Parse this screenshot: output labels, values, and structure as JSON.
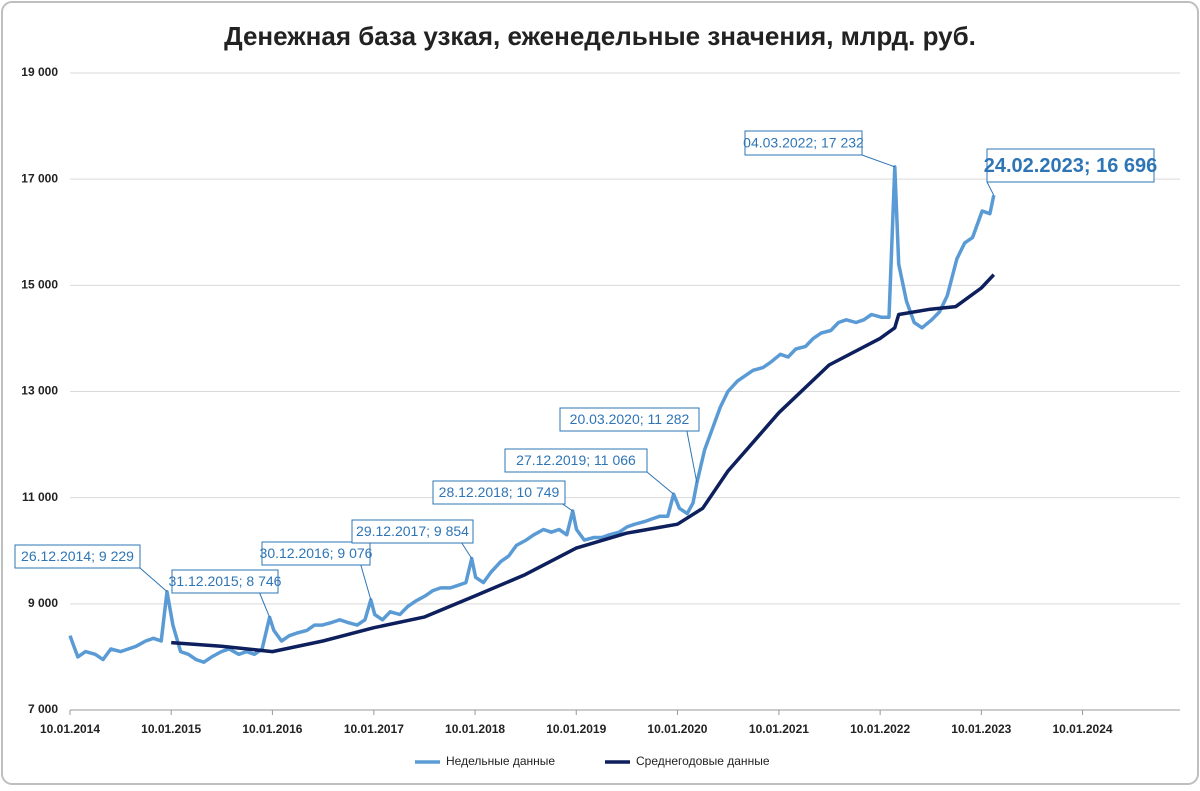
{
  "chart_data": {
    "type": "line",
    "title": "Денежная база узкая, еженедельные значения, млрд. руб.",
    "xlim": [
      "10.01.2014",
      "10.01.2025"
    ],
    "xticks": [
      "10.01.2014",
      "10.01.2015",
      "10.01.2016",
      "10.01.2017",
      "10.01.2018",
      "10.01.2019",
      "10.01.2020",
      "10.01.2021",
      "10.01.2022",
      "10.01.2023",
      "10.01.2024"
    ],
    "ylim": [
      7000,
      19000
    ],
    "yticks": [
      {
        "value": 7000,
        "label": "7 000"
      },
      {
        "value": 9000,
        "label": "9 000"
      },
      {
        "value": 11000,
        "label": "11 000"
      },
      {
        "value": 13000,
        "label": "13 000"
      },
      {
        "value": 15000,
        "label": "15 000"
      },
      {
        "value": 17000,
        "label": "17 000"
      },
      {
        "value": 19000,
        "label": "19 000"
      }
    ],
    "grid": true,
    "legend": "bottom",
    "series": [
      {
        "name": "Недельные данные",
        "color": "#5b9bd5",
        "x": [
          "10.01.2014",
          "07.02.2014",
          "07.03.2014",
          "11.04.2014",
          "09.05.2014",
          "06.06.2014",
          "11.07.2014",
          "08.08.2014",
          "05.09.2014",
          "10.10.2014",
          "07.11.2014",
          "05.12.2014",
          "26.12.2014",
          "16.01.2015",
          "13.02.2015",
          "13.03.2015",
          "10.04.2015",
          "08.05.2015",
          "05.06.2015",
          "10.07.2015",
          "07.08.2015",
          "11.09.2015",
          "09.10.2015",
          "06.11.2015",
          "04.12.2015",
          "31.12.2015",
          "15.01.2016",
          "12.02.2016",
          "11.03.2016",
          "08.04.2016",
          "13.05.2016",
          "10.06.2016",
          "08.07.2016",
          "12.08.2016",
          "09.09.2016",
          "07.10.2016",
          "11.11.2016",
          "09.12.2016",
          "30.12.2016",
          "13.01.2017",
          "10.02.2017",
          "10.03.2017",
          "14.04.2017",
          "12.05.2017",
          "09.06.2017",
          "14.07.2017",
          "11.08.2017",
          "08.09.2017",
          "13.10.2017",
          "10.11.2017",
          "08.12.2017",
          "29.12.2017",
          "12.01.2018",
          "09.02.2018",
          "09.03.2018",
          "13.04.2018",
          "11.05.2018",
          "08.06.2018",
          "13.07.2018",
          "10.08.2018",
          "14.09.2018",
          "12.10.2018",
          "09.11.2018",
          "07.12.2018",
          "28.12.2018",
          "11.01.2019",
          "08.02.2019",
          "15.03.2019",
          "12.04.2019",
          "10.05.2019",
          "14.06.2019",
          "12.07.2019",
          "09.08.2019",
          "13.09.2019",
          "11.10.2019",
          "08.11.2019",
          "06.12.2019",
          "27.12.2019",
          "17.01.2020",
          "14.02.2020",
          "06.03.2020",
          "20.03.2020",
          "17.04.2020",
          "15.05.2020",
          "12.06.2020",
          "10.07.2020",
          "14.08.2020",
          "11.09.2020",
          "09.10.2020",
          "13.11.2020",
          "11.12.2020",
          "15.01.2021",
          "12.02.2021",
          "12.03.2021",
          "16.04.2021",
          "14.05.2021",
          "11.06.2021",
          "16.07.2021",
          "13.08.2021",
          "10.09.2021",
          "15.10.2021",
          "12.11.2021",
          "10.12.2021",
          "14.01.2022",
          "11.02.2022",
          "04.03.2022",
          "18.03.2022",
          "15.04.2022",
          "13.05.2022",
          "10.06.2022",
          "15.07.2022",
          "12.08.2022",
          "09.09.2022",
          "14.10.2022",
          "11.11.2022",
          "09.12.2022",
          "13.01.2023",
          "10.02.2023",
          "24.02.2023"
        ],
        "values": [
          8400,
          8000,
          8100,
          8050,
          7950,
          8150,
          8100,
          8150,
          8200,
          8300,
          8350,
          8300,
          9229,
          8600,
          8100,
          8050,
          7950,
          7900,
          8000,
          8100,
          8150,
          8050,
          8100,
          8050,
          8150,
          8746,
          8500,
          8300,
          8400,
          8450,
          8500,
          8600,
          8600,
          8650,
          8700,
          8650,
          8600,
          8700,
          9076,
          8800,
          8700,
          8850,
          8800,
          8950,
          9050,
          9150,
          9250,
          9300,
          9300,
          9350,
          9400,
          9854,
          9500,
          9400,
          9600,
          9800,
          9900,
          10100,
          10200,
          10300,
          10400,
          10350,
          10400,
          10300,
          10749,
          10400,
          10200,
          10250,
          10250,
          10300,
          10350,
          10450,
          10500,
          10550,
          10600,
          10650,
          10650,
          11066,
          10800,
          10700,
          10900,
          11282,
          11900,
          12300,
          12700,
          13000,
          13200,
          13300,
          13400,
          13450,
          13550,
          13700,
          13650,
          13800,
          13850,
          14000,
          14100,
          14150,
          14300,
          14350,
          14300,
          14350,
          14450,
          14400,
          14400,
          17232,
          15400,
          14700,
          14300,
          14200,
          14350,
          14500,
          14800,
          15500,
          15800,
          15900,
          16400,
          16350,
          16696
        ]
      },
      {
        "name": "Среднегодовые данные",
        "color": "#0d1f5c",
        "x": [
          "10.01.2015",
          "10.07.2015",
          "10.01.2016",
          "10.07.2016",
          "10.01.2017",
          "10.07.2017",
          "10.01.2018",
          "10.07.2018",
          "10.01.2019",
          "10.07.2019",
          "10.01.2020",
          "10.04.2020",
          "10.07.2020",
          "10.01.2021",
          "10.07.2021",
          "10.01.2022",
          "04.03.2022",
          "18.03.2022",
          "10.07.2022",
          "10.10.2022",
          "10.01.2023",
          "24.02.2023"
        ],
        "values": [
          8270,
          8200,
          8100,
          8300,
          8550,
          8750,
          9150,
          9550,
          10050,
          10330,
          10500,
          10800,
          11500,
          12600,
          13500,
          14000,
          14200,
          14450,
          14550,
          14600,
          14950,
          15200
        ]
      }
    ],
    "annotations": [
      {
        "x": "26.12.2014",
        "y": 9229,
        "label": "26.12.2014; 9 229"
      },
      {
        "x": "31.12.2015",
        "y": 8746,
        "label": "31.12.2015; 8 746"
      },
      {
        "x": "30.12.2016",
        "y": 9076,
        "label": "30.12.2016; 9 076"
      },
      {
        "x": "29.12.2017",
        "y": 9854,
        "label": "29.12.2017; 9 854"
      },
      {
        "x": "28.12.2018",
        "y": 10749,
        "label": "28.12.2018; 10 749"
      },
      {
        "x": "27.12.2019",
        "y": 11066,
        "label": "27.12.2019; 11 066"
      },
      {
        "x": "20.03.2020",
        "y": 11282,
        "label": "20.03.2020; 11 282"
      },
      {
        "x": "04.03.2022",
        "y": 17232,
        "label": "04.03.2022; 17 232"
      },
      {
        "x": "24.02.2023",
        "y": 16696,
        "label": "24.02.2023; 16 696"
      }
    ]
  }
}
